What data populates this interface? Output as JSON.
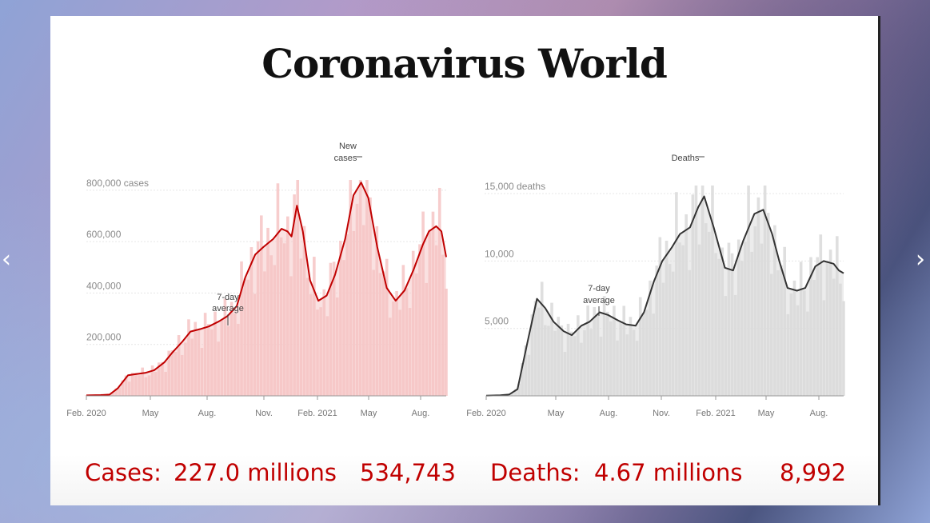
{
  "slide": {
    "title": "Coronavirus World"
  },
  "nav": {
    "prev": "‹",
    "next": "›"
  },
  "stats": {
    "cases_label": "Cases:",
    "cases_total": "227.0 millions",
    "cases_daily": "534,743",
    "deaths_label": "Deaths:",
    "deaths_total": "4.67 millions",
    "deaths_daily": "8,992"
  },
  "colors": {
    "cases_line": "#c00000",
    "cases_bars": "#f6c4c4",
    "deaths_line": "#333333",
    "deaths_bars": "#d9d9d9"
  },
  "chart_data": [
    {
      "type": "area",
      "title": "",
      "xlabel": "",
      "ylabel": "",
      "x_ticks": [
        "Feb. 2020",
        "May",
        "Aug.",
        "Nov.",
        "Feb. 2021",
        "May",
        "Aug."
      ],
      "y_ticks": [
        "800,000 cases",
        "600,000",
        "400,000",
        "200,000"
      ],
      "y_tick_values": [
        800000,
        600000,
        400000,
        200000
      ],
      "ylim": [
        0,
        840000
      ],
      "annotations": [
        {
          "text": "7-day average",
          "target": "average line, Jul. 2020"
        },
        {
          "text": "New cases",
          "target": "daily bars, Apr. 2021 peak"
        }
      ],
      "series": [
        {
          "x": [
            "2020-01-22",
            "2020-02-15",
            "2020-03-01",
            "2020-03-15",
            "2020-04-01",
            "2020-04-15",
            "2020-05-01",
            "2020-05-15",
            "2020-06-01",
            "2020-06-15",
            "2020-07-01",
            "2020-07-15",
            "2020-08-01",
            "2020-08-15",
            "2020-09-01",
            "2020-09-15",
            "2020-10-01",
            "2020-10-15",
            "2020-11-01",
            "2020-11-15",
            "2020-12-01",
            "2020-12-15",
            "2020-12-25",
            "2021-01-01",
            "2021-01-10",
            "2021-01-20",
            "2021-02-01",
            "2021-02-15",
            "2021-03-01",
            "2021-03-15",
            "2021-04-01",
            "2021-04-15",
            "2021-04-28",
            "2021-05-10",
            "2021-05-25",
            "2021-06-10",
            "2021-06-25",
            "2021-07-10",
            "2021-07-25",
            "2021-08-10",
            "2021-08-20",
            "2021-09-01",
            "2021-09-10",
            "2021-09-18"
          ],
          "values": [
            2000,
            3000,
            5000,
            30000,
            80000,
            85000,
            90000,
            100000,
            130000,
            170000,
            210000,
            250000,
            260000,
            270000,
            290000,
            310000,
            350000,
            460000,
            550000,
            580000,
            610000,
            650000,
            640000,
            620000,
            740000,
            640000,
            450000,
            370000,
            390000,
            470000,
            610000,
            780000,
            830000,
            770000,
            580000,
            420000,
            370000,
            410000,
            490000,
            590000,
            640000,
            660000,
            640000,
            540000
          ]
        }
      ]
    },
    {
      "type": "area",
      "title": "",
      "xlabel": "",
      "ylabel": "",
      "x_ticks": [
        "Feb. 2020",
        "May",
        "Aug.",
        "Nov.",
        "Feb. 2021",
        "May",
        "Aug."
      ],
      "y_ticks": [
        "15,000 deaths",
        "10,000",
        "5,000"
      ],
      "y_tick_values": [
        15000,
        10000,
        5000
      ],
      "ylim": [
        0,
        15600
      ],
      "annotations": [
        {
          "text": "7-day average",
          "target": "average line, Aug. 2020"
        },
        {
          "text": "Deaths",
          "target": "daily bars, Jan. 2021 peak"
        }
      ],
      "series": [
        {
          "x": [
            "2020-01-22",
            "2020-02-15",
            "2020-03-01",
            "2020-03-15",
            "2020-04-01",
            "2020-04-17",
            "2020-05-01",
            "2020-05-15",
            "2020-06-01",
            "2020-06-15",
            "2020-07-01",
            "2020-07-15",
            "2020-08-01",
            "2020-08-15",
            "2020-09-01",
            "2020-09-15",
            "2020-10-01",
            "2020-10-15",
            "2020-11-01",
            "2020-11-15",
            "2020-12-01",
            "2020-12-15",
            "2021-01-01",
            "2021-01-15",
            "2021-01-25",
            "2021-02-10",
            "2021-03-01",
            "2021-03-15",
            "2021-04-01",
            "2021-04-20",
            "2021-05-05",
            "2021-05-20",
            "2021-06-01",
            "2021-06-15",
            "2021-07-01",
            "2021-07-15",
            "2021-08-01",
            "2021-08-15",
            "2021-09-01",
            "2021-09-10",
            "2021-09-18"
          ],
          "values": [
            20,
            50,
            100,
            500,
            4000,
            7200,
            6500,
            5500,
            4800,
            4500,
            5200,
            5500,
            6200,
            6000,
            5600,
            5300,
            5200,
            6200,
            8500,
            10000,
            11000,
            12000,
            12500,
            14000,
            14800,
            12500,
            9500,
            9300,
            11500,
            13500,
            13800,
            12000,
            10000,
            8000,
            7800,
            8000,
            9600,
            10000,
            9800,
            9300,
            9100
          ]
        }
      ]
    }
  ]
}
